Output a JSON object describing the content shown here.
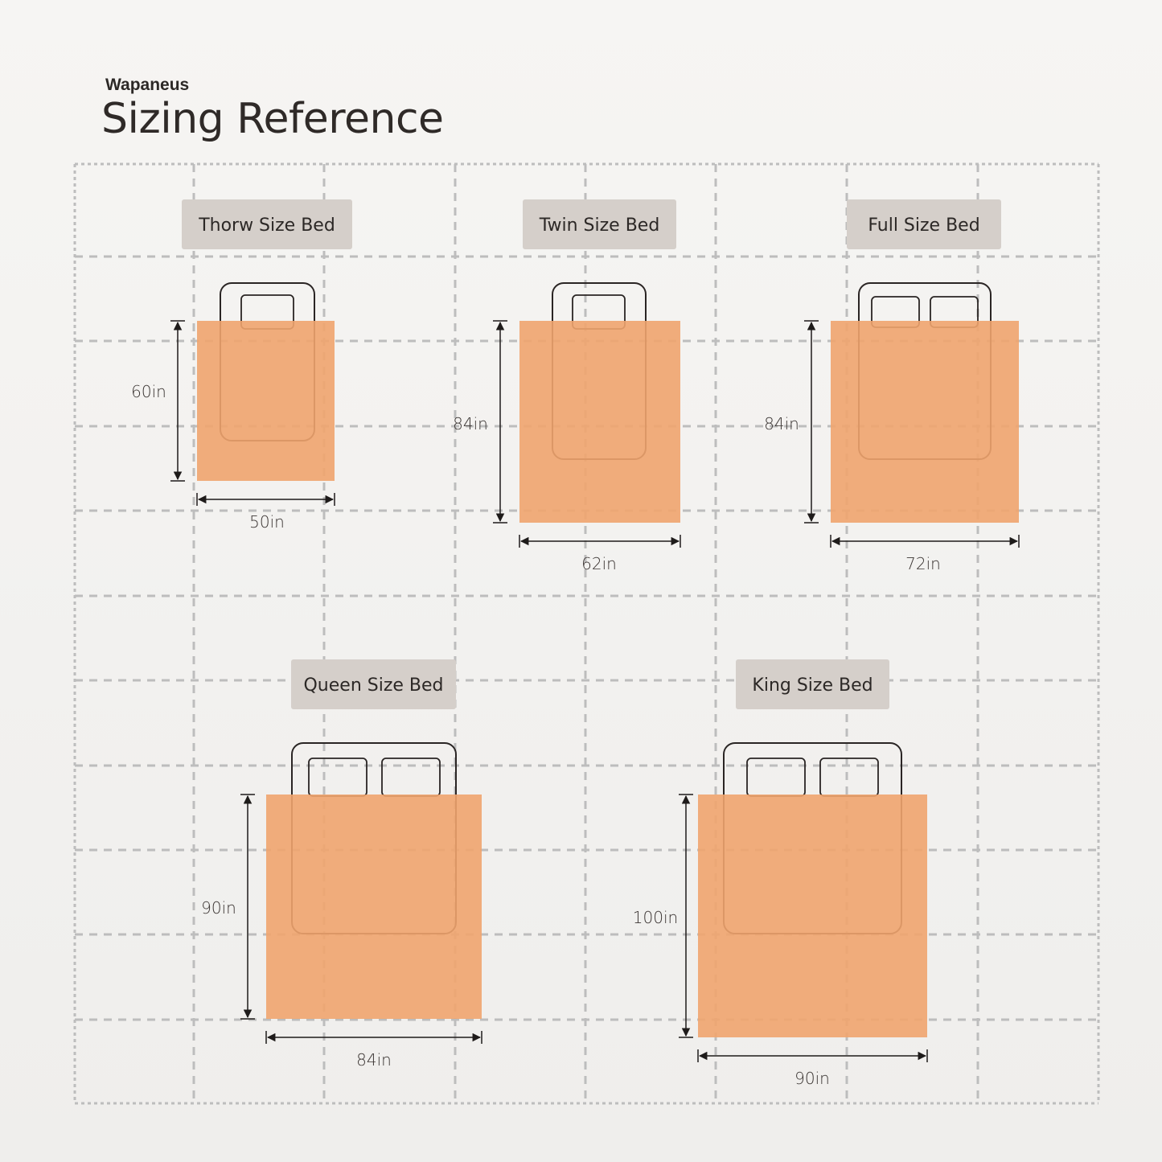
{
  "brand": "Wapaneus",
  "title": "Sizing Reference",
  "colors": {
    "blanket": "#F0A46E",
    "label_bg": "#D5CFCA",
    "grid": "#BDBDBD",
    "outline": "#2a2524"
  },
  "beds": [
    {
      "name": "Thorw Size Bed",
      "height": "60in",
      "width": "50in",
      "pillows": 1
    },
    {
      "name": "Twin Size Bed",
      "height": "84in",
      "width": "62in",
      "pillows": 1
    },
    {
      "name": "Full Size Bed",
      "height": "84in",
      "width": "72in",
      "pillows": 2
    },
    {
      "name": "Queen Size Bed",
      "height": "90in",
      "width": "84in",
      "pillows": 2
    },
    {
      "name": "King Size Bed",
      "height": "100in",
      "width": "90in",
      "pillows": 2
    }
  ]
}
